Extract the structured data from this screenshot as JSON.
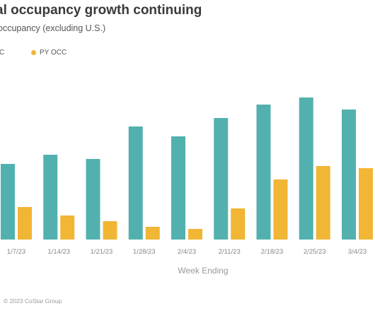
{
  "header": {
    "title": "al occupancy growth continuing",
    "subtitle": "occupancy (excluding U.S.)"
  },
  "footer": {
    "credit": "© 2023 CoStar Group"
  },
  "chart_data": {
    "type": "bar",
    "xlabel": "Week Ending",
    "ylabel": "",
    "categories": [
      "1/7/23",
      "1/14/23",
      "1/21/23",
      "1/28/23",
      "2/4/23",
      "2/11/23",
      "2/18/23",
      "2/25/23",
      "3/4/23"
    ],
    "series": [
      {
        "name": "",
        "color": "#52b1ae",
        "values": [
          53.5,
          60,
          57,
          80,
          73,
          86,
          95.5,
          100.5,
          92
        ]
      },
      {
        "name": "PY OCC",
        "color": "#f0b634",
        "values": [
          23,
          17,
          13,
          9,
          7.5,
          22,
          42.5,
          52,
          50.5
        ]
      }
    ],
    "legend": [
      {
        "label": "C",
        "color": "#52b1ae"
      },
      {
        "label": "PY OCC",
        "color": "#f0b634"
      }
    ],
    "ylim": [
      0,
      102
    ],
    "grid": false,
    "legend_position": "top-left"
  }
}
